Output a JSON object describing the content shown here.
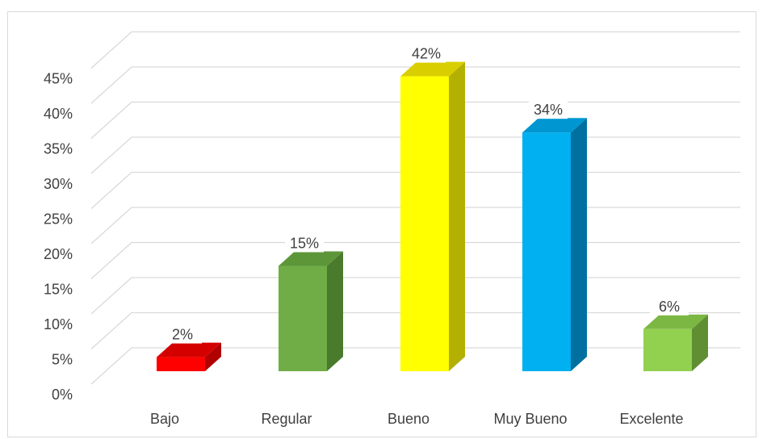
{
  "chart_data": {
    "type": "bar",
    "categories": [
      "Bajo",
      "Regular",
      "Bueno",
      "Muy Bueno",
      "Excelente"
    ],
    "values": [
      2,
      15,
      42,
      34,
      6
    ],
    "value_suffix": "%",
    "data_labels": [
      "2%",
      "15%",
      "42%",
      "34%",
      "6%"
    ],
    "ylim": [
      0,
      45
    ],
    "yticks": [
      0,
      5,
      10,
      15,
      20,
      25,
      30,
      35,
      40,
      45
    ],
    "ytick_labels": [
      "0%",
      "5%",
      "10%",
      "15%",
      "20%",
      "25%",
      "30%",
      "35%",
      "40%",
      "45%"
    ],
    "title": "",
    "xlabel": "",
    "ylabel": "",
    "grid": true,
    "legend": "none",
    "style": "3d-column",
    "colors": {
      "front": [
        "#ff0000",
        "#70ad47",
        "#ffff00",
        "#00b0f0",
        "#92d050"
      ],
      "top": [
        "#d40000",
        "#5d9639",
        "#d9cf00",
        "#0096d1",
        "#7cb743"
      ],
      "side": [
        "#b00000",
        "#4a7a2c",
        "#b3b000",
        "#0070a0",
        "#5f8f32"
      ],
      "grid": "#d9d9d9",
      "text": "#404040"
    }
  }
}
